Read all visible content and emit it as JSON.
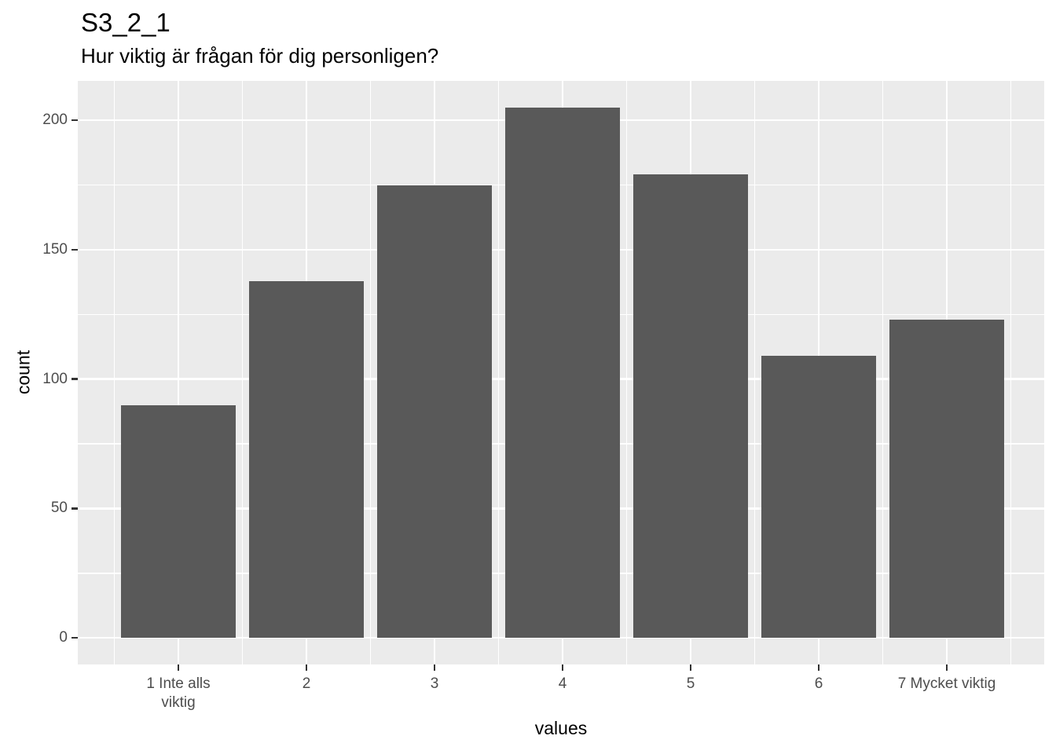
{
  "chart_data": {
    "type": "bar",
    "title": "S3_2_1",
    "subtitle": "Hur viktig är frågan för dig personligen?",
    "xlabel": "values",
    "ylabel": "count",
    "categories": [
      "1 Inte alls viktig",
      "2",
      "3",
      "4",
      "5",
      "6",
      "7 Mycket viktig"
    ],
    "category_label_lines": [
      [
        "1 Inte alls",
        "viktig"
      ],
      [
        "2"
      ],
      [
        "3"
      ],
      [
        "4"
      ],
      [
        "5"
      ],
      [
        "6"
      ],
      [
        "7 Mycket viktig"
      ]
    ],
    "values": [
      90,
      138,
      175,
      205,
      179,
      109,
      123
    ],
    "y_ticks": [
      0,
      50,
      100,
      150,
      200
    ],
    "y_minor_ticks": [
      25,
      75,
      125,
      175
    ],
    "ylim": [
      -10.25,
      215.25
    ],
    "grid": "major-and-minor",
    "legend": "none",
    "colors": {
      "bar": "#595959",
      "panel_background": "#EBEBEB",
      "gridline": "#FFFFFF",
      "tick_label": "#4D4D4D",
      "tick_mark": "#333333",
      "title_text": "#000000",
      "figure_background": "#FFFFFF"
    }
  }
}
